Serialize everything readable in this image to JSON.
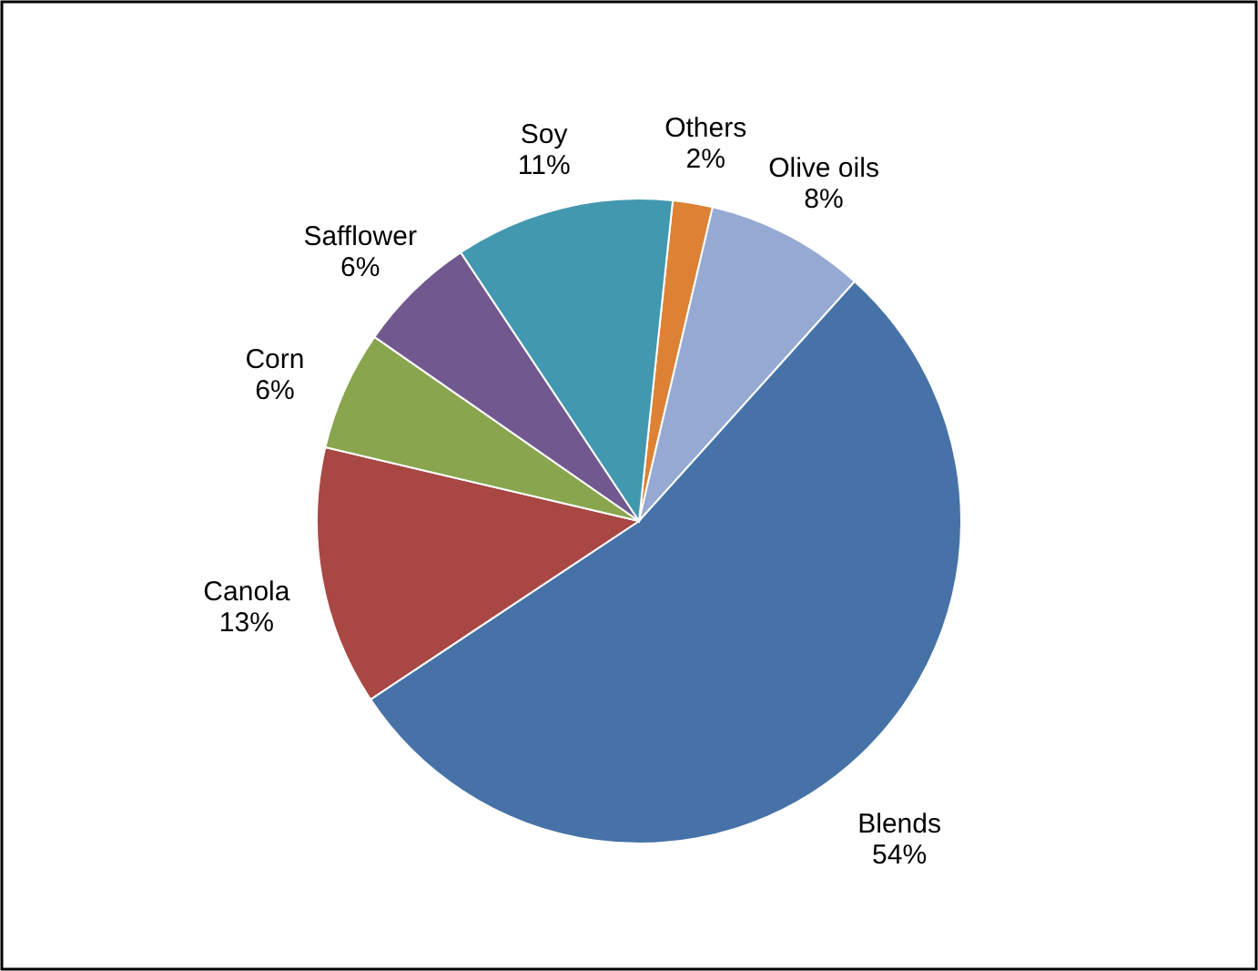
{
  "chart_data": {
    "type": "pie",
    "categories": [
      "Others",
      "Olive oils",
      "Blends",
      "Canola",
      "Corn",
      "Safflower",
      "Soy"
    ],
    "values": [
      2,
      8,
      54,
      13,
      6,
      6,
      11
    ],
    "value_labels": [
      "2%",
      "8%",
      "54%",
      "13%",
      "6%",
      "6%",
      "11%"
    ],
    "colors": [
      "#dd8235",
      "#95a9d3",
      "#4672a8",
      "#a84743",
      "#89a54e",
      "#71598f",
      "#4198af"
    ]
  }
}
